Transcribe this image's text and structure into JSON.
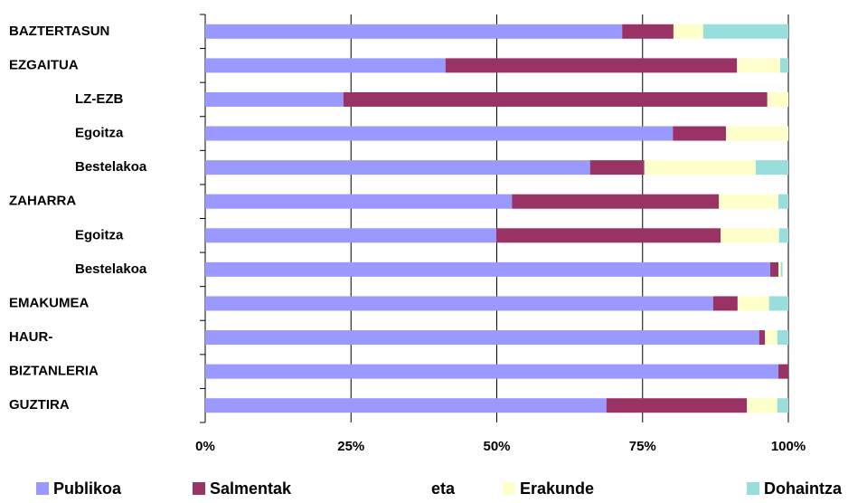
{
  "chart_data": {
    "type": "stacked-bar-horizontal",
    "categories": [
      "BAZTERTASUN",
      "EZGAITUA",
      "LZ-EZB",
      "Egoitza",
      "Bestelakoa",
      "ZAHARRA",
      "Egoitza",
      "Bestelakoa",
      "EMAKUMEA",
      "HAUR-",
      "BIZTANLERIA",
      "GUZTIRA"
    ],
    "series": [
      {
        "name": "Publikoa",
        "color": "#9999ff",
        "values": [
          71.5,
          41.2,
          23.7,
          80.2,
          66,
          52.6,
          49.9,
          96.9,
          87.1,
          95,
          98.3,
          68.8
        ]
      },
      {
        "name": "Salmentak eta",
        "color": "#993366",
        "values": [
          8.8,
          50,
          72.7,
          9.1,
          9.3,
          35.5,
          38.5,
          1.4,
          4.2,
          1,
          1.7,
          24.1
        ]
      },
      {
        "name": "Erakunde",
        "color": "#ffffcc",
        "values": [
          5.1,
          7.4,
          3.6,
          10.7,
          19.1,
          10.2,
          10,
          0.4,
          5.4,
          2.1,
          0,
          5.2
        ]
      },
      {
        "name": "Dohaintza",
        "color": "#99dddd",
        "values": [
          14.6,
          1.4,
          0,
          0,
          5.6,
          1.7,
          1.6,
          0.3,
          3.3,
          1.9,
          0,
          1.9
        ]
      }
    ],
    "xlim": [
      0,
      100
    ],
    "xticks": [
      {
        "value": 0,
        "label": "0%"
      },
      {
        "value": 25,
        "label": "25%"
      },
      {
        "value": 50,
        "label": "50%"
      },
      {
        "value": 75,
        "label": "75%"
      },
      {
        "value": 100,
        "label": "100%"
      }
    ],
    "grid": true
  }
}
